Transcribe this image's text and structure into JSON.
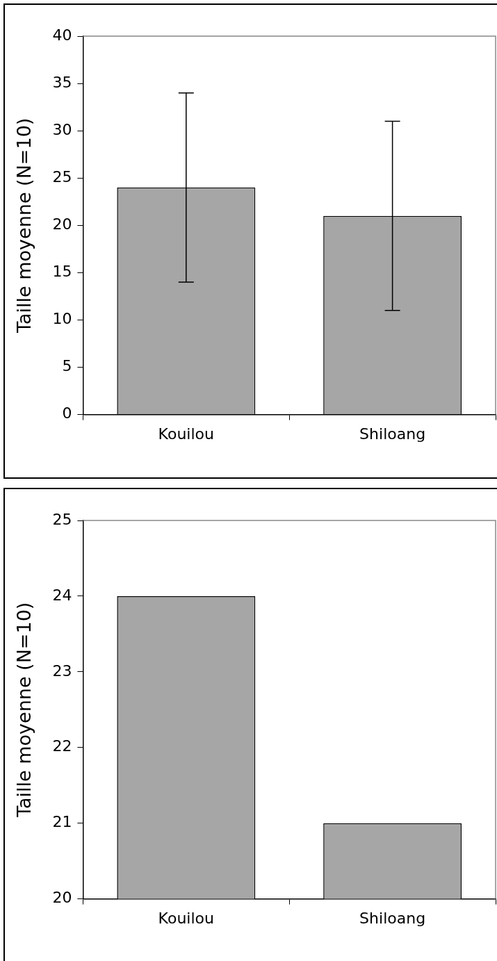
{
  "chart_data": [
    {
      "type": "bar",
      "ylabel": "Taille moyenne (N=10)",
      "categories": [
        "Kouilou",
        "Shiloang"
      ],
      "values": [
        24,
        21
      ],
      "errors": [
        10,
        10
      ],
      "color": "#a6a6a6",
      "ylim": [
        0,
        40
      ],
      "yticks": [
        0,
        5,
        10,
        15,
        20,
        25,
        30,
        35,
        40
      ],
      "grid": false,
      "legend": false
    },
    {
      "type": "bar",
      "ylabel": "Taille moyenne (N=10)",
      "categories": [
        "Kouilou",
        "Shiloang"
      ],
      "values": [
        24,
        21
      ],
      "color": "#a6a6a6",
      "ylim": [
        20,
        25
      ],
      "yticks": [
        20,
        21,
        22,
        23,
        24,
        25
      ],
      "grid": false,
      "legend": false
    }
  ]
}
